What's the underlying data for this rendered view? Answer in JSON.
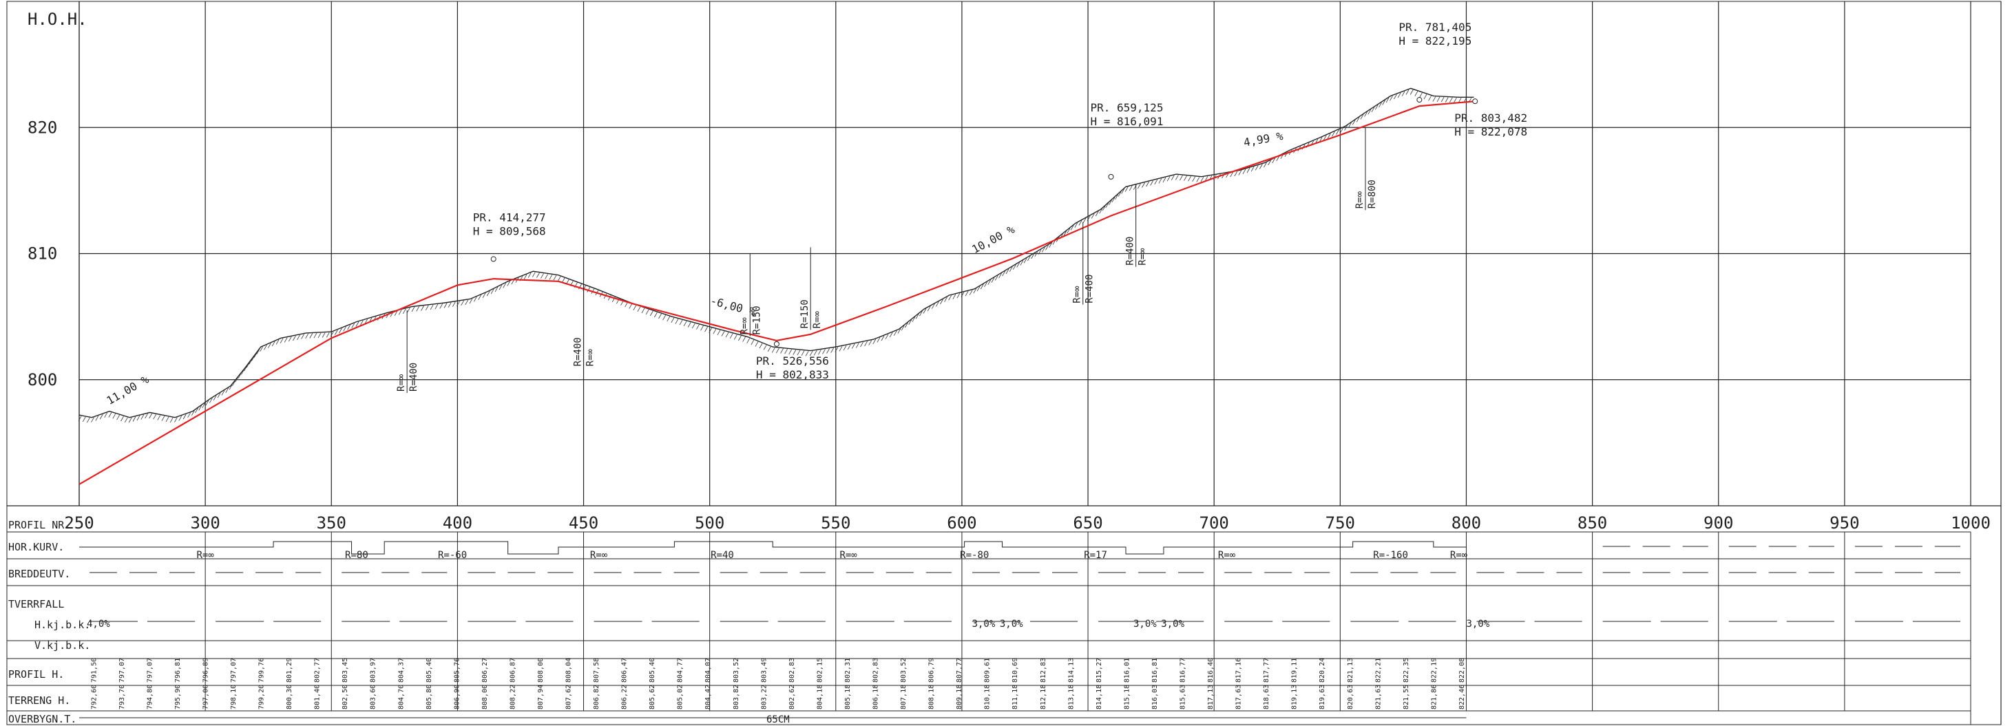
{
  "axis": {
    "y_label": "H.O.H.",
    "y_ticks": [
      "800",
      "810",
      "820"
    ],
    "x_ticks": [
      "250",
      "300",
      "350",
      "400",
      "450",
      "500",
      "550",
      "600",
      "650",
      "700",
      "750",
      "800",
      "850",
      "900",
      "950",
      "1000"
    ]
  },
  "chart_data": {
    "type": "line",
    "xlim": [
      250,
      1000
    ],
    "ylim": [
      790,
      830
    ],
    "ylabel": "H.O.H.",
    "series": [
      {
        "points": [
          [
            250,
            791.7
          ],
          [
            300,
            797.5
          ],
          [
            350,
            803.3
          ],
          [
            400,
            807.5
          ],
          [
            414.277,
            808.0
          ],
          [
            440,
            807.8
          ],
          [
            470,
            806.0
          ],
          [
            510,
            803.9
          ],
          [
            526.556,
            803.1
          ],
          [
            540,
            803.6
          ],
          [
            570,
            805.8
          ],
          [
            620,
            809.6
          ],
          [
            659.125,
            813.0
          ],
          [
            700,
            816.0
          ],
          [
            750,
            819.4
          ],
          [
            781.405,
            821.7
          ],
          [
            803.482,
            822.078
          ]
        ]
      },
      {
        "points": [
          [
            250,
            797.2
          ],
          [
            255,
            797.0
          ],
          [
            262,
            797.5
          ],
          [
            270,
            797.0
          ],
          [
            278,
            797.4
          ],
          [
            288,
            797.0
          ],
          [
            295,
            797.5
          ],
          [
            302,
            798.5
          ],
          [
            310,
            799.5
          ],
          [
            316,
            801.0
          ],
          [
            322,
            802.6
          ],
          [
            330,
            803.3
          ],
          [
            340,
            803.7
          ],
          [
            350,
            803.8
          ],
          [
            360,
            804.6
          ],
          [
            372,
            805.3
          ],
          [
            382,
            805.8
          ],
          [
            395,
            806.1
          ],
          [
            405,
            806.4
          ],
          [
            412,
            807.0
          ],
          [
            420,
            807.8
          ],
          [
            430,
            808.6
          ],
          [
            440,
            808.3
          ],
          [
            455,
            807.2
          ],
          [
            470,
            806.0
          ],
          [
            485,
            805.0
          ],
          [
            500,
            804.2
          ],
          [
            515,
            803.4
          ],
          [
            525,
            802.6
          ],
          [
            540,
            802.3
          ],
          [
            550,
            802.6
          ],
          [
            565,
            803.2
          ],
          [
            575,
            804.0
          ],
          [
            585,
            805.6
          ],
          [
            595,
            806.7
          ],
          [
            605,
            807.2
          ],
          [
            615,
            808.4
          ],
          [
            625,
            809.6
          ],
          [
            635,
            810.8
          ],
          [
            645,
            812.4
          ],
          [
            655,
            813.5
          ],
          [
            665,
            815.3
          ],
          [
            675,
            815.8
          ],
          [
            685,
            816.3
          ],
          [
            695,
            816.1
          ],
          [
            710,
            816.6
          ],
          [
            720,
            817.2
          ],
          [
            730,
            818.2
          ],
          [
            742,
            819.2
          ],
          [
            752,
            820.1
          ],
          [
            760,
            821.2
          ],
          [
            770,
            822.5
          ],
          [
            778,
            823.1
          ],
          [
            787,
            822.5
          ],
          [
            797,
            822.4
          ],
          [
            803,
            822.4
          ]
        ]
      }
    ],
    "annotations": [
      {
        "x": 414.277,
        "y": 809.568,
        "label_1": "PR. 414,277",
        "label_2": "H = 809,568"
      },
      {
        "x": 526.556,
        "y": 802.833,
        "label_1": "PR. 526,556",
        "label_2": "H = 802,833"
      },
      {
        "x": 659.125,
        "y": 816.091,
        "label_1": "PR. 659,125",
        "label_2": "H = 816,091"
      },
      {
        "x": 781.405,
        "y": 822.195,
        "label_1": "PR. 781,405",
        "label_2": "H = 822,195"
      },
      {
        "x": 803.482,
        "y": 822.078,
        "label_1": "PR. 803,482",
        "label_2": "H = 822,078"
      }
    ],
    "grades": [
      {
        "x": 262,
        "y": 798.0,
        "label": "11,00 %"
      },
      {
        "x": 500,
        "y": 806.0,
        "label": "-6,00 %"
      },
      {
        "x": 605,
        "y": 810.0,
        "label": "10,00 %"
      },
      {
        "x": 712,
        "y": 818.5,
        "label": "4,99 %"
      }
    ],
    "curve_markers": [
      {
        "x": 380,
        "y": 805.5,
        "r1": "R=∞",
        "r2": "R=400"
      },
      {
        "x": 450,
        "y": 807.5,
        "r1": "R=400",
        "r2": "R=∞"
      },
      {
        "x": 516,
        "y": 810.0,
        "r1": "R=∞",
        "r2": "R=150"
      },
      {
        "x": 540,
        "y": 810.5,
        "r1": "R=150",
        "r2": "R=∞"
      },
      {
        "x": 648,
        "y": 812.5,
        "r1": "R=∞",
        "r2": "R=400"
      },
      {
        "x": 669,
        "y": 815.5,
        "r1": "R=400",
        "r2": "R=∞"
      },
      {
        "x": 760,
        "y": 820.0,
        "r1": "R=∞",
        "r2": "R=800"
      }
    ]
  },
  "bands": {
    "profil_nr": "PROFIL NR.",
    "hor_kurv": "HOR.KURV.",
    "breddeutv": "BREDDEUTV.",
    "tverrfall": "TVERRFALL",
    "h_kjb": "H.kj.b.k.",
    "v_kjb": "V.kj.b.k.",
    "profil_h": "PROFIL H.",
    "terreng_h": "TERRENG H.",
    "overbygn": "OVERBYGN.T.",
    "overbygn_value": "65CM",
    "hor_kurv_labels": [
      {
        "x": 300,
        "text": "R=∞"
      },
      {
        "x": 360,
        "text": "R=80"
      },
      {
        "x": 398,
        "text": "R=-60"
      },
      {
        "x": 456,
        "text": "R=∞"
      },
      {
        "x": 505,
        "text": "R=40"
      },
      {
        "x": 555,
        "text": "R=∞"
      },
      {
        "x": 605,
        "text": "R=-80"
      },
      {
        "x": 653,
        "text": "R=17"
      },
      {
        "x": 705,
        "text": "R=∞"
      },
      {
        "x": 770,
        "text": "R=-160"
      },
      {
        "x": 797,
        "text": "R=∞"
      }
    ],
    "tverrfall_labels": [
      {
        "x": 253,
        "text": "4,0%"
      },
      {
        "x": 604,
        "text": "3,0%"
      },
      {
        "x": 615,
        "text": "3,0%"
      },
      {
        "x": 668,
        "text": "3,0%"
      },
      {
        "x": 679,
        "text": "3,0%"
      },
      {
        "x": 800,
        "text": "3,0%"
      }
    ],
    "profil_h_values": [
      "791,50",
      "797,07",
      "797,07",
      "796,81",
      "796,89",
      "797,07",
      "799,76",
      "801,29",
      "802,77",
      "803,45",
      "803,97",
      "804,37",
      "805,40",
      "805,76",
      "806,27",
      "806,87",
      "808,00",
      "808,04",
      "807,58",
      "806,47",
      "805,40",
      "804,77",
      "804,07",
      "803,52",
      "803,49",
      "802,83",
      "802,15",
      "802,31",
      "802,83",
      "803,52",
      "806,79",
      "807,77",
      "809,61",
      "810,69",
      "812,83",
      "814,13",
      "815,27",
      "816,01",
      "816,81",
      "816,77",
      "816,40",
      "817,16",
      "817,77",
      "819,11",
      "820,24",
      "821,13",
      "822,21",
      "822,35",
      "822,19",
      "822,08"
    ],
    "terreng_h_values": [
      "792,60",
      "793,70",
      "794,80",
      "795,90",
      "797,00",
      "798,10",
      "799,20",
      "800,30",
      "801,40",
      "802,50",
      "803,60",
      "804,70",
      "805,80",
      "806,90",
      "808,00",
      "808,22",
      "807,94",
      "807,62",
      "806,82",
      "806,22",
      "805,62",
      "805,02",
      "804,42",
      "803,82",
      "803,22",
      "802,62",
      "804,18",
      "805,18",
      "806,18",
      "807,18",
      "808,18",
      "809,18",
      "810,18",
      "811,18",
      "812,18",
      "813,18",
      "814,18",
      "815,18",
      "816,03",
      "815,63",
      "817,13",
      "817,63",
      "818,63",
      "819,13",
      "819,63",
      "820,63",
      "821,63",
      "821,55",
      "821,86",
      "822,46"
    ]
  }
}
